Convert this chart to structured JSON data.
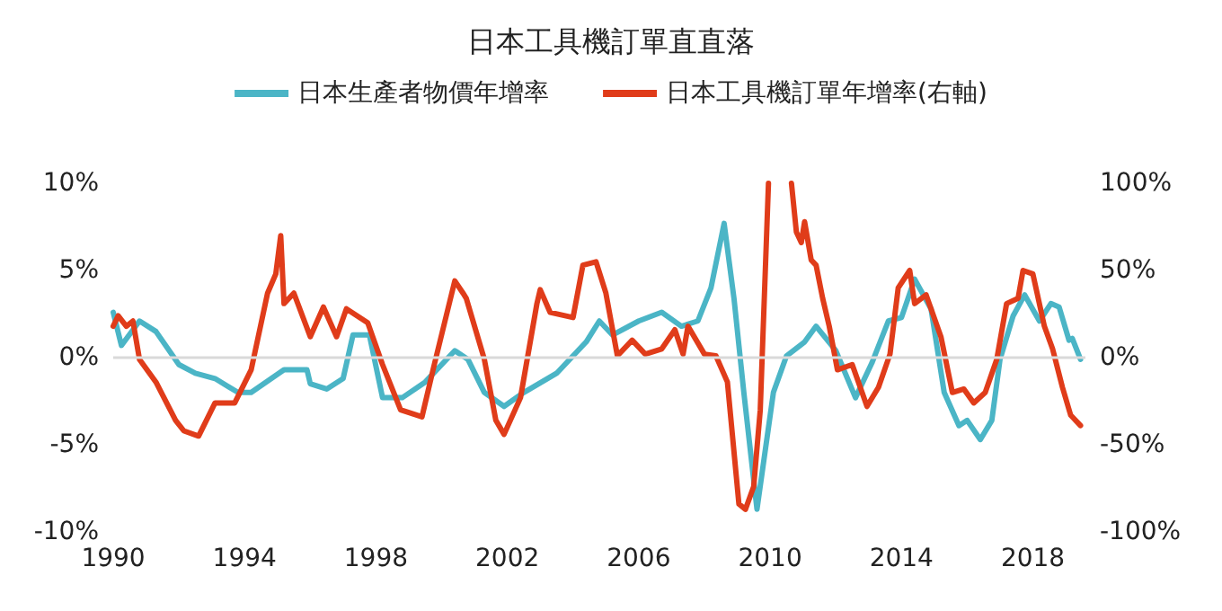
{
  "chart_data": {
    "type": "line",
    "title": "日本工具機訂單直直落",
    "legend": "top",
    "grid": false,
    "marker": "none",
    "line_style": "solid",
    "xlim": [
      1990,
      2019.6
    ],
    "xticks": [
      1990,
      1994,
      1998,
      2002,
      2006,
      2010,
      2014,
      2018
    ],
    "ylim": [
      -10,
      10
    ],
    "yticks": [
      {
        "value": -10,
        "label": "-10%"
      },
      {
        "value": -5,
        "label": "-5%"
      },
      {
        "value": 0,
        "label": "0%"
      },
      {
        "value": 5,
        "label": "5%"
      },
      {
        "value": 10,
        "label": "10%"
      }
    ],
    "y2lim": [
      -100,
      100
    ],
    "y2ticks": [
      {
        "value": -100,
        "label": "-100%"
      },
      {
        "value": -50,
        "label": "-50%"
      },
      {
        "value": 0,
        "label": "0%"
      },
      {
        "value": 50,
        "label": "50%"
      },
      {
        "value": 100,
        "label": "100%"
      }
    ],
    "ref_lines": [
      {
        "axis": "y",
        "value": 0,
        "color": "#d9d9d9"
      }
    ],
    "series": [
      {
        "name": "日本生產者物價年增率",
        "color": "#4bb5c6",
        "x": [
          1990,
          1990.25,
          1990.8,
          1991.3,
          1992,
          1992.5,
          1993.1,
          1993.8,
          1994.2,
          1995.2,
          1995.9,
          1996,
          1996.5,
          1997,
          1997.3,
          1997.8,
          1998.2,
          1998.8,
          1999.5,
          2000.4,
          2000.8,
          2001.3,
          2001.9,
          2002.5,
          2003.5,
          2004.4,
          2004.8,
          2005.2,
          2006,
          2006.7,
          2007.3,
          2007.8,
          2008.2,
          2008.6,
          2008.9,
          2009.2,
          2009.6,
          2010.1,
          2010.5,
          2011.05,
          2011.4,
          2012,
          2012.6,
          2013.1,
          2013.6,
          2014,
          2014.4,
          2014.9,
          2015.3,
          2015.75,
          2016,
          2016.4,
          2016.75,
          2017,
          2017.4,
          2017.75,
          2018.2,
          2018.55,
          2018.8,
          2019.1,
          2019.2,
          2019.45
        ],
        "values": [
          2.6,
          0.7,
          2.1,
          1.5,
          -0.4,
          -0.9,
          -1.2,
          -2,
          -2,
          -0.7,
          -0.7,
          -1.5,
          -1.8,
          -1.2,
          1.3,
          1.3,
          -2.3,
          -2.3,
          -1.4,
          0.4,
          -0.1,
          -2,
          -2.8,
          -2,
          -0.9,
          0.9,
          2.1,
          1.3,
          2.1,
          2.6,
          1.8,
          2.1,
          4,
          7.7,
          3.4,
          -2,
          -8.7,
          -2,
          0.1,
          0.9,
          1.8,
          0.4,
          -2.3,
          -0.3,
          2.1,
          2.3,
          4.5,
          2.8,
          -2,
          -3.9,
          -3.6,
          -4.7,
          -3.6,
          -0.1,
          2.4,
          3.6,
          2.1,
          3.1,
          2.9,
          1,
          1.1,
          -0.1
        ]
      },
      {
        "name": "日本工具機訂單年增率(右軸)",
        "color": "#e03c1a",
        "axis": "y2",
        "x": [
          1990,
          1990.15,
          1990.4,
          1990.6,
          1990.8,
          1991.3,
          1991.9,
          1992.15,
          1992.6,
          1993.1,
          1993.7,
          1994.2,
          1994.7,
          1994.95,
          1995.1,
          1995.2,
          1995.5,
          1996,
          1996.4,
          1996.8,
          1997.1,
          1997.75,
          1998.2,
          1998.75,
          1999.4,
          1999.75,
          2000.4,
          2000.65,
          2000.75,
          2001.3,
          2001.65,
          2001.9,
          2002.4,
          2002.9,
          2003,
          2003.3,
          2004,
          2004.3,
          2004.7,
          2005,
          2005.35,
          2005.8,
          2006.2,
          2006.7,
          2007.1,
          2007.35,
          2007.5,
          2008,
          2008.35,
          2008.7,
          2009.05,
          2009.25,
          2009.5,
          2009.7,
          2009.95,
          2010.3,
          2010.65,
          2010.8,
          2010.95,
          2011.05,
          2011.25,
          2011.4,
          2011.6,
          2011.8,
          2012.05,
          2012.5,
          2012.95,
          2013.3,
          2013.65,
          2013.9,
          2014.25,
          2014.4,
          2014.75,
          2015.2,
          2015.55,
          2015.9,
          2016.2,
          2016.55,
          2016.9,
          2017.2,
          2017.55,
          2017.7,
          2018,
          2018.35,
          2018.6,
          2018.9,
          2019.15,
          2019.45
        ],
        "values": [
          18,
          24,
          18,
          21,
          -1,
          -14,
          -36,
          -42,
          -45,
          -26,
          -26,
          -7,
          37,
          48,
          70,
          31,
          37,
          12,
          29,
          12,
          28,
          20,
          -4,
          -30,
          -34,
          -6,
          44,
          37,
          34,
          -1,
          -36,
          -44,
          -23,
          31,
          39,
          26,
          23,
          53,
          55,
          37,
          1,
          10,
          2,
          5,
          16,
          2,
          18,
          2,
          1,
          -14,
          -84,
          -87,
          -74,
          -30,
          100,
          null,
          100,
          72,
          66,
          78,
          56,
          53,
          34,
          18,
          -7,
          -4,
          -28,
          -17,
          2,
          40,
          50,
          31,
          36,
          12,
          -20,
          -18,
          -26,
          -20,
          -1,
          31,
          34,
          50,
          48,
          18,
          5,
          -17,
          -33,
          -39
        ]
      }
    ]
  }
}
